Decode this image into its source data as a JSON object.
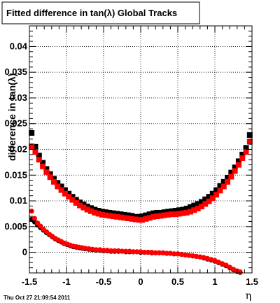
{
  "date_stamp": "Thu Oct 27 21:09:54 2011",
  "colors": {
    "black_series": "#000000",
    "red_series": "#ff0000",
    "frame": "#000000",
    "grid": "#000000"
  },
  "chart_data": {
    "type": "scatter",
    "title": "Fitted difference in tan(λ)  Global Tracks",
    "xlabel": "η",
    "ylabel": "difference in tan(λ)",
    "xlim": [
      -1.5,
      1.5
    ],
    "ylim": [
      -0.004,
      0.044
    ],
    "grid": true,
    "x_ticks": [
      -1.5,
      -1,
      -0.5,
      0,
      0.5,
      1,
      1.5
    ],
    "x_tick_labels": [
      "-1.5",
      "-1",
      "-0.5",
      "0",
      "0.5",
      "1",
      "1.5"
    ],
    "y_ticks": [
      0,
      0.005,
      0.01,
      0.015,
      0.02,
      0.025,
      0.03,
      0.035,
      0.04
    ],
    "y_tick_labels": [
      "0",
      "0.005",
      "0.01",
      "0.015",
      "0.02",
      "0.025",
      "0.03",
      "0.035",
      "0.04"
    ],
    "series": [
      {
        "marker": "square",
        "color": "#000000",
        "x": [
          -1.47,
          -1.42,
          -1.37,
          -1.32,
          -1.27,
          -1.22,
          -1.17,
          -1.12,
          -1.07,
          -1.02,
          -0.97,
          -0.92,
          -0.87,
          -0.82,
          -0.77,
          -0.72,
          -0.67,
          -0.62,
          -0.57,
          -0.52,
          -0.47,
          -0.42,
          -0.37,
          -0.32,
          -0.27,
          -0.22,
          -0.17,
          -0.12,
          -0.07,
          -0.02,
          0.02,
          0.07,
          0.12,
          0.17,
          0.22,
          0.27,
          0.32,
          0.37,
          0.42,
          0.47,
          0.52,
          0.57,
          0.62,
          0.67,
          0.72,
          0.77,
          0.82,
          0.87,
          0.92,
          0.97,
          1.02,
          1.07,
          1.12,
          1.17,
          1.22,
          1.27,
          1.32,
          1.37,
          1.42,
          1.47
        ],
        "y": [
          0.0232,
          0.0205,
          0.0188,
          0.0174,
          0.0162,
          0.0152,
          0.0143,
          0.0135,
          0.0128,
          0.0121,
          0.0114,
          0.0108,
          0.0102,
          0.0097,
          0.0093,
          0.0089,
          0.0086,
          0.0083,
          0.0081,
          0.0079,
          0.0078,
          0.0077,
          0.0076,
          0.0075,
          0.0074,
          0.0073,
          0.0072,
          0.0071,
          0.0069,
          0.0069,
          0.007,
          0.0072,
          0.0074,
          0.0076,
          0.0077,
          0.0077,
          0.0078,
          0.0079,
          0.008,
          0.0081,
          0.0082,
          0.0083,
          0.0085,
          0.0088,
          0.0091,
          0.0094,
          0.0098,
          0.0103,
          0.0108,
          0.0114,
          0.0121,
          0.0129,
          0.0137,
          0.0145,
          0.0155,
          0.0165,
          0.0177,
          0.019,
          0.0203,
          0.0228
        ]
      },
      {
        "marker": "square",
        "color": "#ff0000",
        "x": [
          -1.47,
          -1.42,
          -1.37,
          -1.32,
          -1.27,
          -1.22,
          -1.17,
          -1.12,
          -1.07,
          -1.02,
          -0.97,
          -0.92,
          -0.87,
          -0.82,
          -0.77,
          -0.72,
          -0.67,
          -0.62,
          -0.57,
          -0.52,
          -0.47,
          -0.42,
          -0.37,
          -0.32,
          -0.27,
          -0.22,
          -0.17,
          -0.12,
          -0.07,
          -0.02,
          0.02,
          0.07,
          0.12,
          0.17,
          0.22,
          0.27,
          0.32,
          0.37,
          0.42,
          0.47,
          0.52,
          0.57,
          0.62,
          0.67,
          0.72,
          0.77,
          0.82,
          0.87,
          0.92,
          0.97,
          1.02,
          1.07,
          1.12,
          1.17,
          1.22,
          1.27,
          1.32,
          1.37,
          1.42,
          1.47
        ],
        "y": [
          0.0206,
          0.0195,
          0.018,
          0.0167,
          0.0156,
          0.0146,
          0.0137,
          0.0128,
          0.0121,
          0.0114,
          0.0108,
          0.0102,
          0.0096,
          0.0091,
          0.0087,
          0.0083,
          0.008,
          0.0077,
          0.0075,
          0.0073,
          0.0072,
          0.0071,
          0.007,
          0.0069,
          0.0068,
          0.0067,
          0.0066,
          0.0065,
          0.0064,
          0.0063,
          0.0063,
          0.0065,
          0.0067,
          0.0069,
          0.007,
          0.0071,
          0.0072,
          0.0073,
          0.0074,
          0.0074,
          0.0075,
          0.0076,
          0.0077,
          0.0079,
          0.0082,
          0.0085,
          0.0089,
          0.0094,
          0.0099,
          0.0105,
          0.0112,
          0.012,
          0.0128,
          0.0137,
          0.0147,
          0.0158,
          0.017,
          0.0183,
          0.0195,
          0.0215
        ]
      },
      {
        "marker": "circle",
        "color": "#000000",
        "x": [
          -1.47,
          -1.43,
          -1.39,
          -1.35,
          -1.31,
          -1.27,
          -1.23,
          -1.19,
          -1.15,
          -1.11,
          -1.07,
          -1.03,
          -0.99,
          -0.95,
          -0.91,
          -0.87,
          -0.83,
          -0.79,
          -0.75,
          -0.7,
          -0.65,
          -0.6,
          -0.55,
          -0.5,
          -0.45,
          -0.4,
          -0.35,
          -0.3,
          -0.25,
          -0.2,
          -0.15,
          -0.1,
          -0.05,
          0.0,
          0.05,
          0.1,
          0.15,
          0.2,
          0.25,
          0.3,
          0.35,
          0.4,
          0.45,
          0.5,
          0.55,
          0.6,
          0.65,
          0.7,
          0.75,
          0.8,
          0.85,
          0.9,
          0.95,
          1.0,
          1.05,
          1.1,
          1.15,
          1.2,
          1.25,
          1.3,
          1.34
        ],
        "y": [
          0.0064,
          0.0059,
          0.0053,
          0.0048,
          0.0043,
          0.0038,
          0.0034,
          0.003,
          0.0026,
          0.0023,
          0.002,
          0.0017,
          0.0015,
          0.0013,
          0.0011,
          0.001,
          0.0009,
          0.0008,
          0.0007,
          0.0006,
          0.0005,
          0.0004,
          0.0004,
          0.0003,
          0.0003,
          0.0002,
          0.0002,
          0.0002,
          0.0002,
          0.0001,
          0.0001,
          0.0001,
          0.0001,
          0.0,
          0.0,
          0.0,
          -0.0001,
          -0.0001,
          -0.0001,
          -0.0001,
          -0.0002,
          -0.0002,
          -0.0003,
          -0.0003,
          -0.0004,
          -0.0005,
          -0.0006,
          -0.0007,
          -0.0008,
          -0.0009,
          -0.0011,
          -0.0013,
          -0.0015,
          -0.0017,
          -0.002,
          -0.0023,
          -0.0026,
          -0.003,
          -0.0034,
          -0.0037,
          -0.0039
        ]
      },
      {
        "marker": "circle",
        "color": "#ff0000",
        "x": [
          -1.47,
          -1.43,
          -1.39,
          -1.35,
          -1.31,
          -1.27,
          -1.23,
          -1.19,
          -1.15,
          -1.11,
          -1.07,
          -1.03,
          -0.99,
          -0.95,
          -0.91,
          -0.87,
          -0.83,
          -0.79,
          -0.75,
          -0.7,
          -0.65,
          -0.6,
          -0.55,
          -0.5,
          -0.45,
          -0.4,
          -0.35,
          -0.3,
          -0.25,
          -0.2,
          -0.15,
          -0.1,
          -0.05,
          0.0,
          0.05,
          0.1,
          0.15,
          0.2,
          0.25,
          0.3,
          0.35,
          0.4,
          0.45,
          0.5,
          0.55,
          0.6,
          0.65,
          0.7,
          0.75,
          0.8,
          0.85,
          0.9,
          0.95,
          1.0,
          1.05,
          1.1,
          1.15,
          1.2,
          1.25,
          1.3,
          1.34
        ],
        "y": [
          0.008,
          0.0066,
          0.0057,
          0.0051,
          0.0045,
          0.004,
          0.0035,
          0.0031,
          0.0027,
          0.0024,
          0.0021,
          0.0018,
          0.0016,
          0.0014,
          0.0012,
          0.0011,
          0.001,
          0.0009,
          0.0008,
          0.0007,
          0.0006,
          0.0005,
          0.0005,
          0.0004,
          0.0004,
          0.0003,
          0.0003,
          0.0003,
          0.0002,
          0.0002,
          0.0002,
          0.0001,
          0.0001,
          0.0001,
          0.0,
          0.0,
          0.0,
          -0.0001,
          -0.0001,
          -0.0001,
          -0.0002,
          -0.0002,
          -0.0003,
          -0.0003,
          -0.0004,
          -0.0005,
          -0.0006,
          -0.0007,
          -0.0008,
          -0.0009,
          -0.001,
          -0.0012,
          -0.0014,
          -0.0016,
          -0.0019,
          -0.0022,
          -0.0025,
          -0.0029,
          -0.0033,
          -0.0036,
          -0.0038
        ]
      }
    ]
  }
}
